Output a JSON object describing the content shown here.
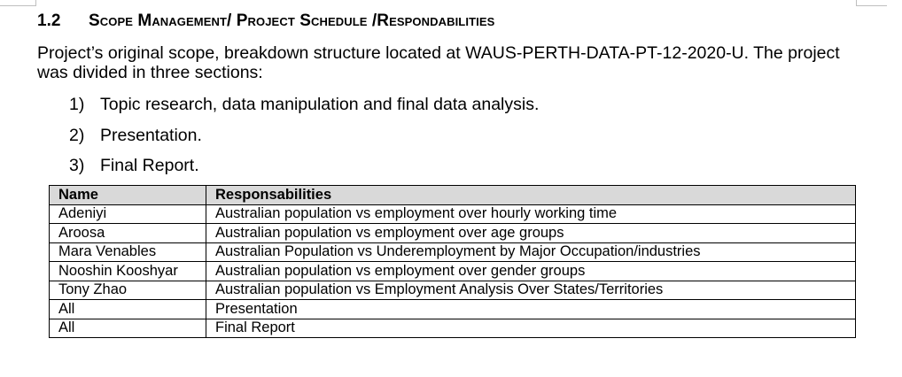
{
  "section": {
    "number": "1.2",
    "title": "Scope Management/ Project Schedule /Respondabilities"
  },
  "intro": "Project’s original scope, breakdown structure located at WAUS-PERTH-DATA-PT-12-2020-U. The project was divided in three sections:",
  "steps": [
    {
      "marker": "1)",
      "text": "Topic research, data manipulation and final data analysis."
    },
    {
      "marker": "2)",
      "text": "Presentation."
    },
    {
      "marker": "3)",
      "text": "Final Report."
    }
  ],
  "table": {
    "headers": [
      "Name",
      "Responsabilities"
    ],
    "rows": [
      [
        "Adeniyi",
        "Australian population vs employment over hourly working time"
      ],
      [
        "Aroosa",
        "Australian population vs employment over age groups"
      ],
      [
        "Mara Venables",
        "Australian Population vs Underemployment by Major Occupation/industries"
      ],
      [
        "Nooshin Kooshyar",
        "Australian population vs employment over gender groups"
      ],
      [
        "Tony Zhao",
        "Australian population vs Employment Analysis Over States/Territories"
      ],
      [
        "All",
        "Presentation"
      ],
      [
        "All",
        "Final Report"
      ]
    ],
    "header_bg": "#d9d9d9"
  }
}
